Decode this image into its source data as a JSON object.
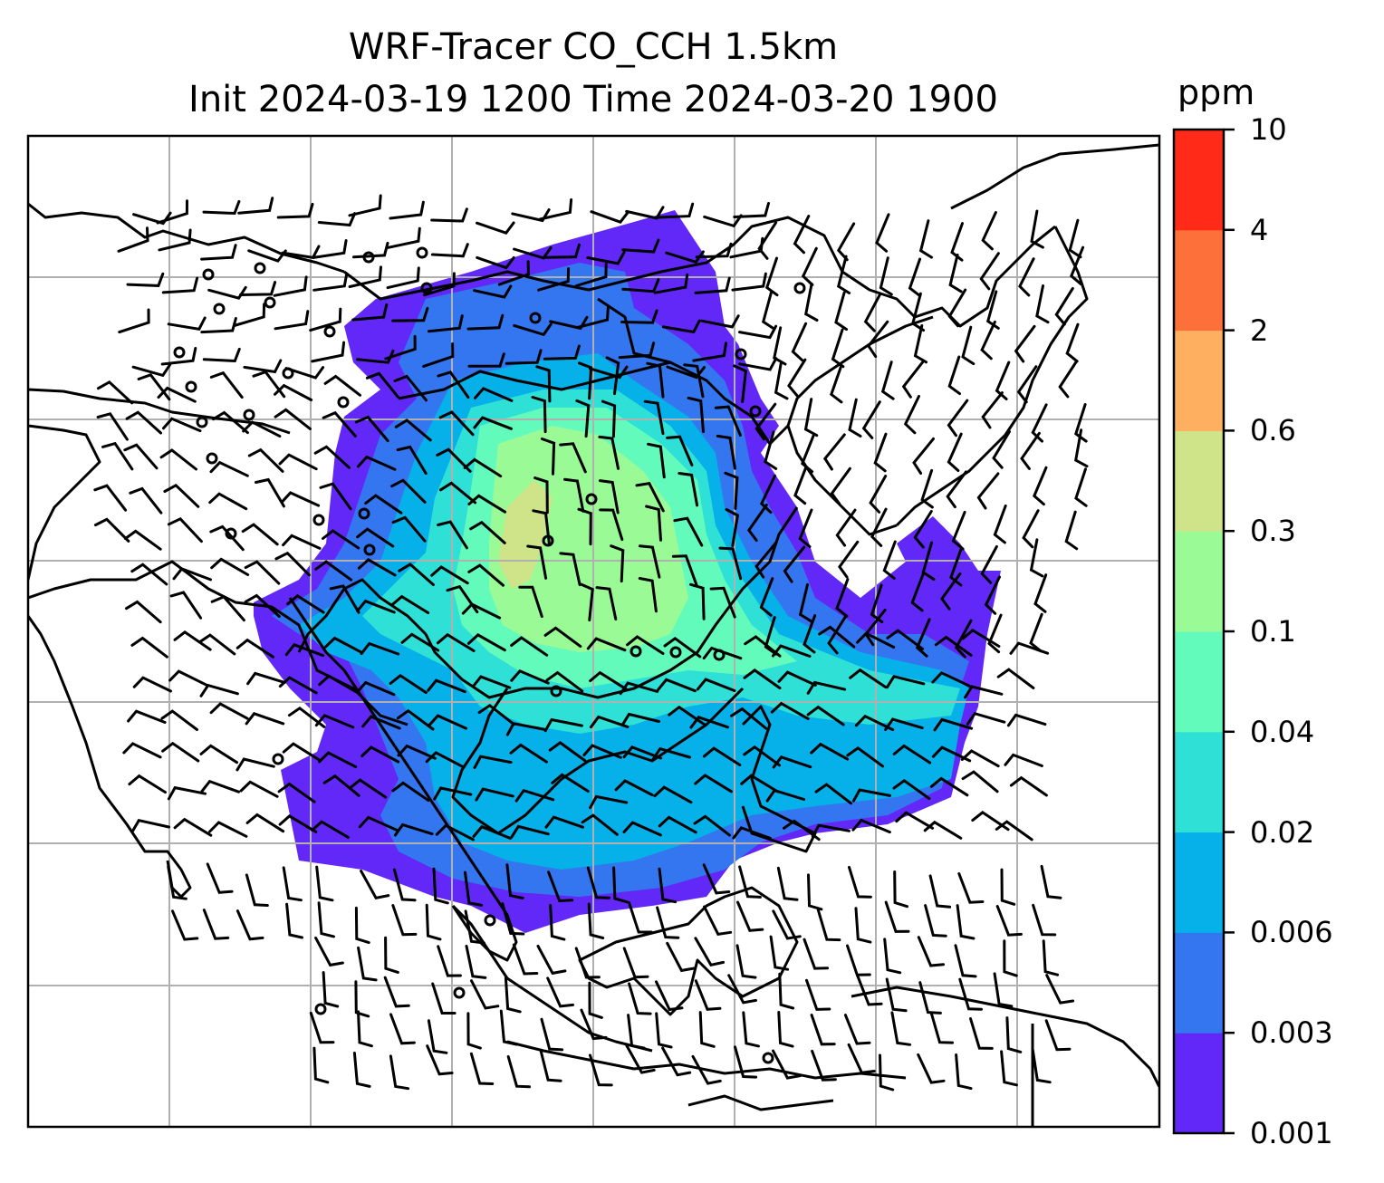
{
  "title": {
    "line1": "WRF-Tracer CO_CCH 1.5km",
    "line2": "Init 2024-03-19 1200 Time 2024-03-20 1900"
  },
  "colorbar": {
    "unit": "ppm",
    "ticks": [
      "10",
      "4",
      "2",
      "0.6",
      "0.3",
      "0.1",
      "0.04",
      "0.02",
      "0.006",
      "0.003",
      "0.001"
    ],
    "levels_bottom_to_top": [
      0.001,
      0.003,
      0.006,
      0.02,
      0.04,
      0.1,
      0.3,
      0.6,
      2,
      4,
      10
    ],
    "colors_bottom_to_top": [
      "#6128f7",
      "#3476f0",
      "#06b0e8",
      "#2ee0d5",
      "#62fbbc",
      "#9afa96",
      "#cfe389",
      "#feaf5f",
      "#fe7039",
      "#ff2a18"
    ]
  },
  "map": {
    "field_colors": {
      "lowest": "#6128f7",
      "low": "#3476f0",
      "mid_low": "#06b0e8",
      "mid": "#2ee0d5",
      "mid_high": "#62fbbc",
      "high": "#9afa96",
      "peak": "#cfe389"
    },
    "gridline_color": "#b0b0b0",
    "coastline_color": "#000000",
    "features": [
      "concentration-field",
      "wind-barbs",
      "coastlines",
      "gridlines"
    ]
  }
}
